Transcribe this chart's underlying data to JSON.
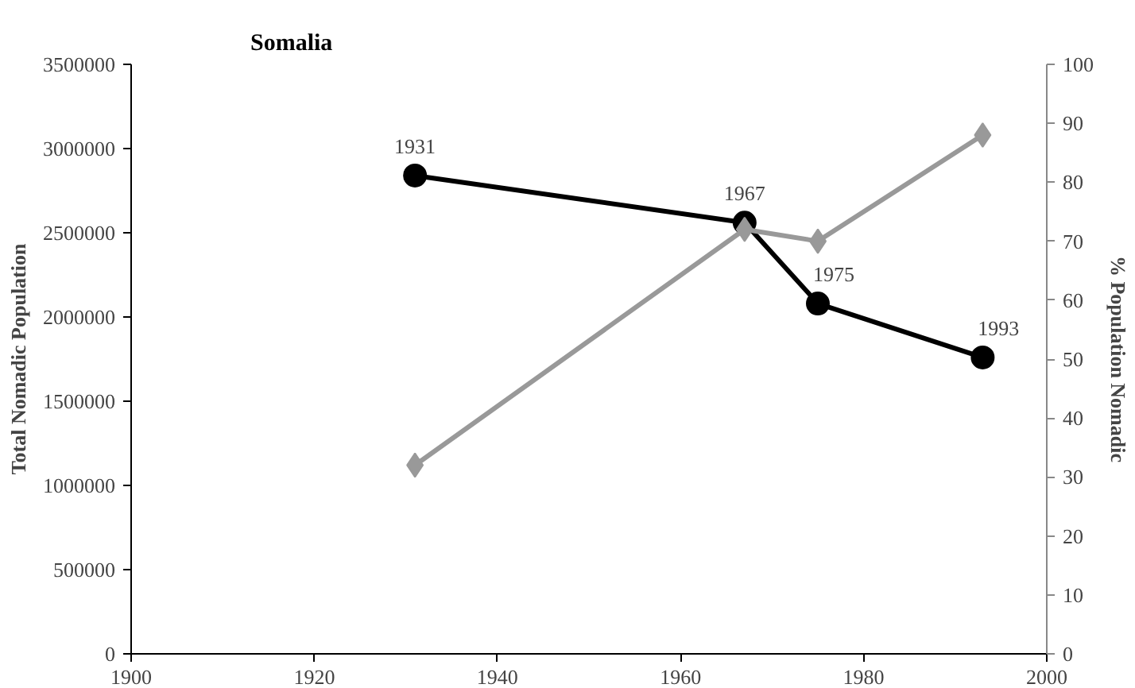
{
  "chart_data": {
    "type": "line",
    "title": "Somalia",
    "ylabel": "Total Nomadic Population",
    "y2label": "% Population Nomadic",
    "x": [
      1931,
      1967,
      1975,
      1993
    ],
    "series": [
      {
        "color": "#000000",
        "marker": "circle",
        "values": [
          2840000,
          2560000,
          2080000,
          1760000
        ]
      },
      {
        "color": "#999999",
        "marker": "diamond",
        "axis": "y2",
        "values": [
          32,
          72,
          70,
          88
        ]
      }
    ],
    "xlim": [
      1900,
      2000
    ],
    "xticks": [
      1900,
      1920,
      1940,
      1960,
      1980,
      2000
    ],
    "ylim": [
      0,
      3500000
    ],
    "yticks": [
      0,
      500000,
      1000000,
      1500000,
      2000000,
      2500000,
      3000000,
      3500000
    ],
    "y2lim": [
      0,
      100
    ],
    "y2ticks": [
      0,
      10,
      20,
      30,
      40,
      50,
      60,
      70,
      80,
      90,
      100
    ],
    "grid": false,
    "annotations": [
      {
        "text": "1931",
        "x": 1931,
        "y": 2840000
      },
      {
        "text": "1967",
        "x": 1967,
        "y": 2560000
      },
      {
        "text": "1975",
        "x": 1975,
        "y": 2080000
      },
      {
        "text": "1993",
        "x": 1993,
        "y": 1760000
      }
    ]
  }
}
